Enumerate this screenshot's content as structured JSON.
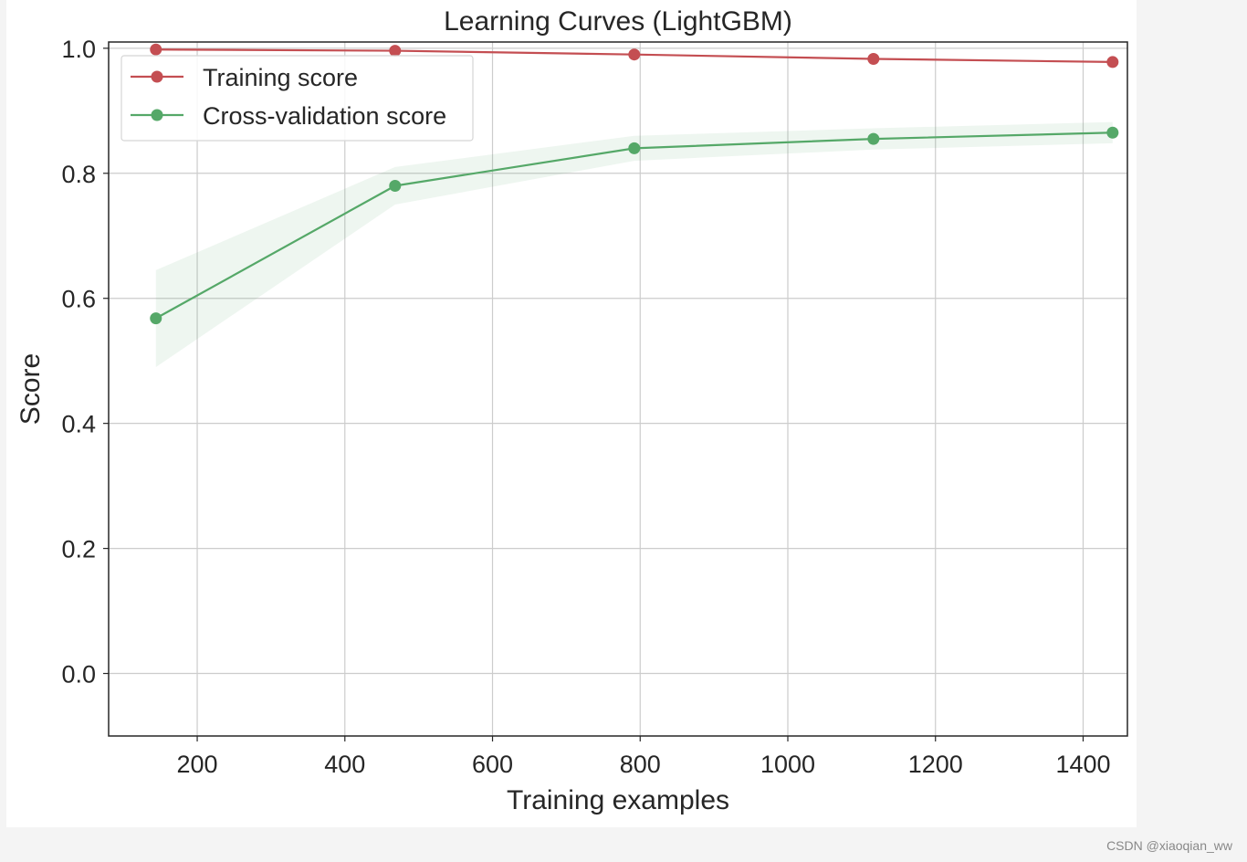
{
  "chart_data": {
    "type": "line",
    "title": "Learning Curves (LightGBM)",
    "xlabel": "Training examples",
    "ylabel": "Score",
    "xlim": [
      80,
      1460
    ],
    "ylim": [
      -0.1,
      1.01
    ],
    "xticks": [
      200,
      400,
      600,
      800,
      1000,
      1200,
      1400
    ],
    "xtick_labels": [
      "200",
      "400",
      "600",
      "800",
      "1000",
      "1200",
      "1400"
    ],
    "yticks": [
      0.0,
      0.2,
      0.4,
      0.6,
      0.8,
      1.0
    ],
    "ytick_labels": [
      "0.0",
      "0.2",
      "0.4",
      "0.6",
      "0.8",
      "1.0"
    ],
    "grid": true,
    "legend_position": "top-left",
    "x": [
      144,
      468,
      792,
      1116,
      1440
    ],
    "series": [
      {
        "name": "Training score",
        "color": "#c44e52",
        "values": [
          0.998,
          0.996,
          0.99,
          0.983,
          0.978
        ],
        "band_low": [
          0.997,
          0.995,
          0.989,
          0.982,
          0.977
        ],
        "band_high": [
          0.999,
          0.997,
          0.991,
          0.984,
          0.979
        ]
      },
      {
        "name": "Cross-validation score",
        "color": "#55a868",
        "values": [
          0.568,
          0.78,
          0.84,
          0.855,
          0.865
        ],
        "band_low": [
          0.49,
          0.75,
          0.82,
          0.838,
          0.848
        ],
        "band_high": [
          0.645,
          0.81,
          0.86,
          0.872,
          0.882
        ]
      }
    ]
  },
  "watermark": "CSDN @xiaoqian_ww"
}
